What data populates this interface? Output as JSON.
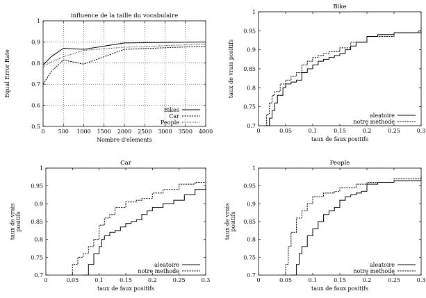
{
  "chart_data": [
    {
      "type": "line",
      "title": "influence de la taille du vocabulaire",
      "xlabel": "Nombre d'elements",
      "ylabel": "Equal Error Rate",
      "xlim": [
        0,
        4000
      ],
      "ylim": [
        0.5,
        1
      ],
      "xticks": [
        0,
        500,
        1000,
        1500,
        2000,
        2500,
        3000,
        3500,
        4000
      ],
      "yticks": [
        0.5,
        0.6,
        0.7,
        0.8,
        0.9,
        1
      ],
      "xtick_labels": [
        "0",
        "500",
        "1000",
        "1500",
        "2000",
        "2500",
        "3000",
        "3500",
        "4000"
      ],
      "ytick_labels": [
        "0.5",
        "0.6",
        "0.7",
        "0.8",
        "0.9",
        "1"
      ],
      "grid": true,
      "legend": "bottom-right",
      "series": [
        {
          "name": "Bikes",
          "style": "solid",
          "x": [
            0,
            100,
            200,
            500,
            1000,
            2000,
            4000
          ],
          "y": [
            0.79,
            0.81,
            0.83,
            0.87,
            0.865,
            0.895,
            0.9
          ]
        },
        {
          "name": "Car",
          "style": "dashed",
          "x": [
            0,
            100,
            200,
            500,
            1000,
            2000,
            4000
          ],
          "y": [
            0.7,
            0.73,
            0.76,
            0.815,
            0.795,
            0.865,
            0.88
          ]
        },
        {
          "name": "People",
          "style": "dotted",
          "x": [
            0,
            100,
            200,
            500,
            1000,
            2000,
            4000
          ],
          "y": [
            0.78,
            0.795,
            0.805,
            0.83,
            0.86,
            0.875,
            0.89
          ]
        }
      ]
    },
    {
      "type": "line",
      "title": "Bike",
      "xlabel": "taux de faux positifs",
      "ylabel": "taux de vrais positifs",
      "xlim": [
        0,
        0.3
      ],
      "ylim": [
        0.7,
        1
      ],
      "xticks": [
        0,
        0.05,
        0.1,
        0.15,
        0.2,
        0.25,
        0.3
      ],
      "yticks": [
        0.7,
        0.75,
        0.8,
        0.85,
        0.9,
        0.95,
        1
      ],
      "xtick_labels": [
        "0",
        "0.05",
        "0.1",
        "0.15",
        "0.2",
        "0.25",
        "0.3"
      ],
      "ytick_labels": [
        "0.7",
        "0.75",
        "0.8",
        "0.85",
        "0.9",
        "0.95",
        "1"
      ],
      "grid": false,
      "legend": "bottom-right",
      "series": [
        {
          "name": "aleatoire",
          "style": "solid",
          "x": [
            0.015,
            0.02,
            0.025,
            0.03,
            0.035,
            0.045,
            0.05,
            0.06,
            0.07,
            0.08,
            0.09,
            0.1,
            0.11,
            0.12,
            0.13,
            0.14,
            0.15,
            0.16,
            0.17,
            0.18,
            0.2,
            0.22,
            0.25,
            0.3
          ],
          "y": [
            0.7,
            0.72,
            0.74,
            0.76,
            0.78,
            0.8,
            0.81,
            0.815,
            0.82,
            0.84,
            0.85,
            0.86,
            0.87,
            0.875,
            0.88,
            0.885,
            0.89,
            0.9,
            0.91,
            0.92,
            0.935,
            0.94,
            0.945,
            0.95
          ]
        },
        {
          "name": "notre methode",
          "style": "dashed",
          "x": [
            0.01,
            0.015,
            0.02,
            0.025,
            0.03,
            0.04,
            0.05,
            0.06,
            0.07,
            0.08,
            0.09,
            0.1,
            0.11,
            0.12,
            0.13,
            0.15,
            0.17,
            0.2,
            0.25,
            0.295,
            0.3
          ],
          "y": [
            0.7,
            0.73,
            0.76,
            0.78,
            0.79,
            0.81,
            0.82,
            0.83,
            0.84,
            0.86,
            0.87,
            0.88,
            0.885,
            0.89,
            0.895,
            0.905,
            0.92,
            0.935,
            0.945,
            0.95,
            0.96
          ]
        }
      ]
    },
    {
      "type": "line",
      "title": "Car",
      "xlabel": "taux de faux positifs",
      "ylabel": "taux de vrais positifs",
      "xlim": [
        0,
        0.3
      ],
      "ylim": [
        0.7,
        1
      ],
      "xticks": [
        0,
        0.05,
        0.1,
        0.15,
        0.2,
        0.25,
        0.3
      ],
      "yticks": [
        0.7,
        0.75,
        0.8,
        0.85,
        0.9,
        0.95,
        1
      ],
      "xtick_labels": [
        "0",
        "0.05",
        "0.1",
        "0.15",
        "0.2",
        "0.25",
        "0.3"
      ],
      "ytick_labels": [
        "0.7",
        "0.75",
        "0.8",
        "0.85",
        "0.9",
        "0.95",
        "1"
      ],
      "grid": false,
      "legend": "bottom-right",
      "series": [
        {
          "name": "aleatoire",
          "style": "solid",
          "x": [
            0.07,
            0.08,
            0.09,
            0.1,
            0.105,
            0.11,
            0.12,
            0.13,
            0.14,
            0.15,
            0.16,
            0.17,
            0.18,
            0.19,
            0.2,
            0.22,
            0.24,
            0.26,
            0.28,
            0.3
          ],
          "y": [
            0.7,
            0.73,
            0.76,
            0.78,
            0.8,
            0.81,
            0.82,
            0.825,
            0.835,
            0.845,
            0.85,
            0.855,
            0.87,
            0.88,
            0.89,
            0.9,
            0.91,
            0.925,
            0.94,
            0.95
          ]
        },
        {
          "name": "notre methode",
          "style": "dashed",
          "x": [
            0.04,
            0.05,
            0.06,
            0.07,
            0.08,
            0.09,
            0.1,
            0.11,
            0.12,
            0.13,
            0.15,
            0.17,
            0.18,
            0.2,
            0.22,
            0.25,
            0.28,
            0.3
          ],
          "y": [
            0.7,
            0.73,
            0.75,
            0.76,
            0.78,
            0.8,
            0.84,
            0.86,
            0.87,
            0.89,
            0.905,
            0.91,
            0.915,
            0.93,
            0.94,
            0.955,
            0.96,
            0.965
          ]
        }
      ]
    },
    {
      "type": "line",
      "title": "People",
      "xlabel": "taux de faux positifs",
      "ylabel": "taux de vrais positifs",
      "xlim": [
        0,
        0.3
      ],
      "ylim": [
        0.7,
        1
      ],
      "xticks": [
        0,
        0.05,
        0.1,
        0.15,
        0.2,
        0.25,
        0.3
      ],
      "yticks": [
        0.7,
        0.75,
        0.8,
        0.85,
        0.9,
        0.95,
        1
      ],
      "xtick_labels": [
        "0",
        "0.05",
        "0.1",
        "0.15",
        "0.2",
        "0.25",
        "0.3"
      ],
      "ytick_labels": [
        "0.7",
        "0.75",
        "0.8",
        "0.85",
        "0.9",
        "0.95",
        "1"
      ],
      "grid": false,
      "legend": "bottom-right",
      "series": [
        {
          "name": "aleatoire",
          "style": "solid",
          "x": [
            0.06,
            0.07,
            0.075,
            0.08,
            0.09,
            0.1,
            0.11,
            0.12,
            0.13,
            0.14,
            0.15,
            0.16,
            0.17,
            0.18,
            0.19,
            0.2,
            0.22,
            0.25,
            0.3
          ],
          "y": [
            0.7,
            0.73,
            0.76,
            0.78,
            0.81,
            0.83,
            0.85,
            0.87,
            0.88,
            0.89,
            0.91,
            0.92,
            0.925,
            0.93,
            0.935,
            0.955,
            0.96,
            0.965,
            0.975
          ]
        },
        {
          "name": "notre methode",
          "style": "dashed",
          "x": [
            0.045,
            0.05,
            0.055,
            0.06,
            0.07,
            0.08,
            0.09,
            0.1,
            0.12,
            0.14,
            0.15,
            0.18,
            0.2,
            0.25,
            0.3
          ],
          "y": [
            0.7,
            0.73,
            0.78,
            0.82,
            0.86,
            0.88,
            0.9,
            0.92,
            0.93,
            0.935,
            0.945,
            0.955,
            0.96,
            0.97,
            0.98
          ]
        }
      ]
    }
  ]
}
